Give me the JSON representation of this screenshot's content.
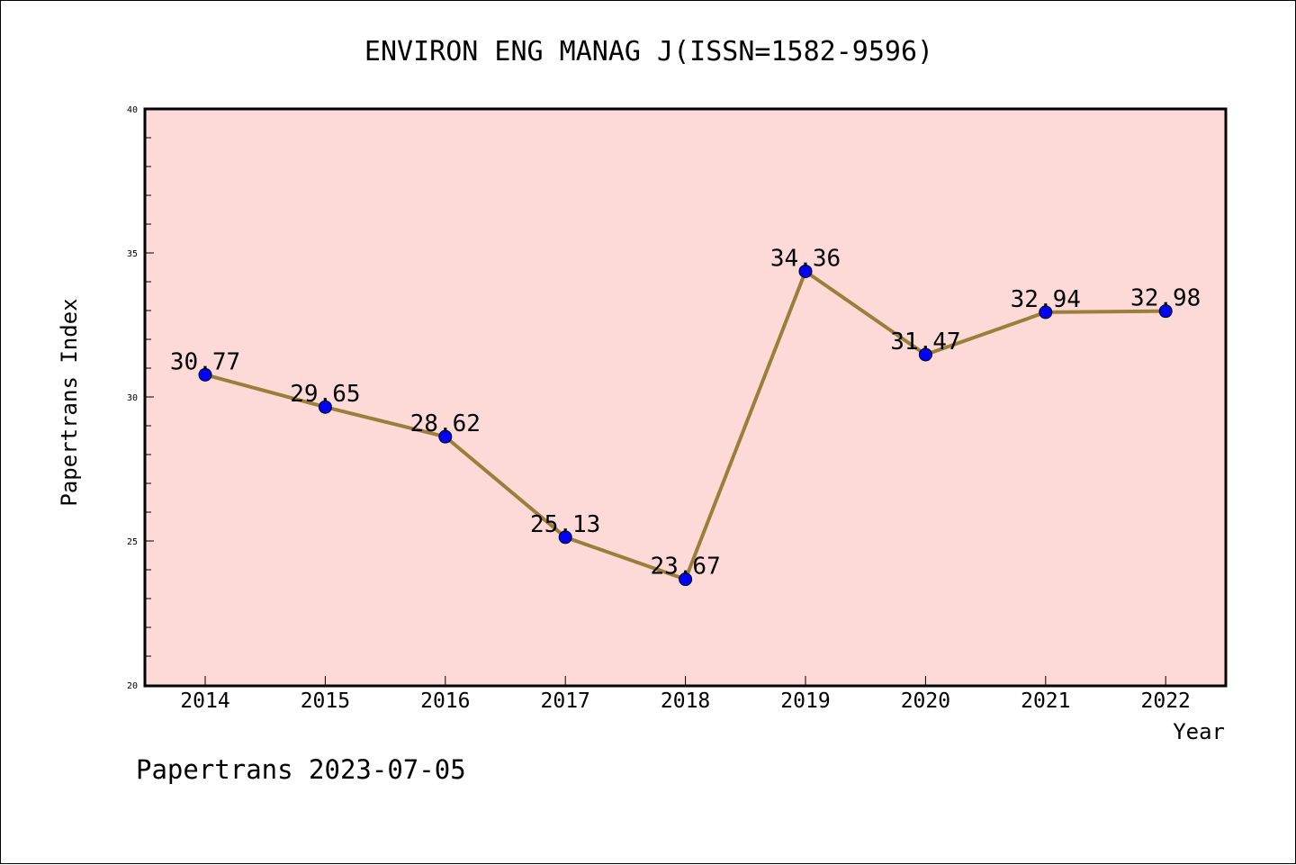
{
  "chart_data": {
    "type": "line",
    "title": "ENVIRON ENG MANAG J(ISSN=1582-9596)",
    "xlabel": "Year",
    "ylabel": "Papertrans Index",
    "categories": [
      "2014",
      "2015",
      "2016",
      "2017",
      "2018",
      "2019",
      "2020",
      "2021",
      "2022"
    ],
    "values": [
      30.77,
      29.65,
      28.62,
      25.13,
      23.67,
      34.36,
      31.47,
      32.94,
      32.98
    ],
    "data_labels": [
      "30.77",
      "29.65",
      "28.62",
      "25.13",
      "23.67",
      "34.36",
      "31.47",
      "32.94",
      "32.98"
    ],
    "ylim": [
      20,
      40
    ],
    "yticks": [
      "20",
      "25",
      "30",
      "35",
      "40"
    ],
    "grid": false,
    "colors": {
      "plot_background": "#fddad7",
      "line": "#9a7e3a",
      "marker": "#0000ff"
    }
  },
  "footer": "Papertrans 2023-07-05"
}
